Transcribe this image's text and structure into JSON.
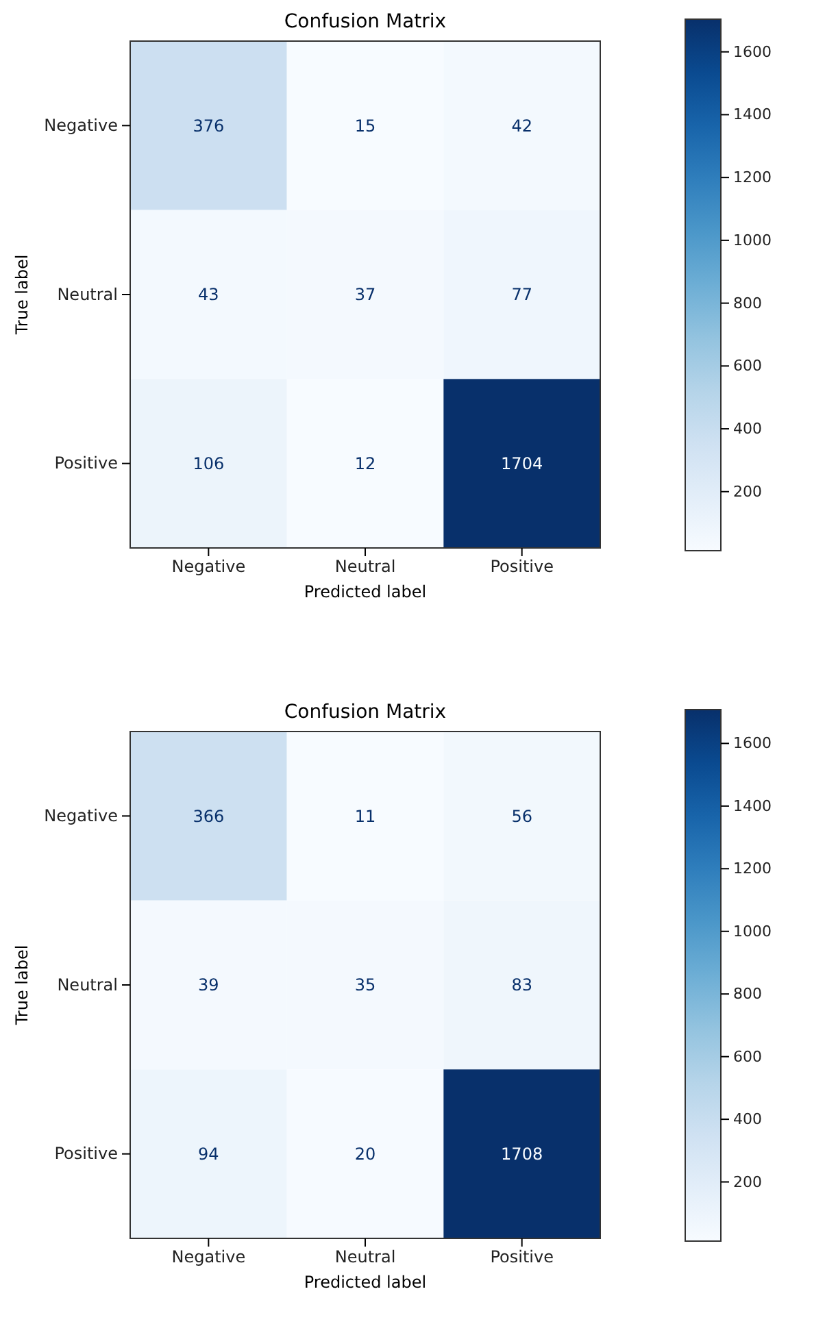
{
  "chart_data": [
    {
      "type": "heatmap",
      "title": "Confusion Matrix",
      "xlabel": "Predicted label",
      "ylabel": "True label",
      "categories": [
        "Negative",
        "Neutral",
        "Positive"
      ],
      "y_categories": [
        "Negative",
        "Neutral",
        "Positive"
      ],
      "cells": [
        [
          376,
          15,
          42
        ],
        [
          43,
          37,
          77
        ],
        [
          106,
          12,
          1704
        ]
      ],
      "data_labels": true,
      "clim": [
        12,
        1704
      ],
      "cticks": [
        200,
        400,
        600,
        800,
        1000,
        1200,
        1400,
        1600
      ]
    },
    {
      "type": "heatmap",
      "title": "Confusion Matrix",
      "xlabel": "Predicted label",
      "ylabel": "True label",
      "categories": [
        "Negative",
        "Neutral",
        "Positive"
      ],
      "y_categories": [
        "Negative",
        "Neutral",
        "Positive"
      ],
      "cells": [
        [
          366,
          11,
          56
        ],
        [
          39,
          35,
          83
        ],
        [
          94,
          20,
          1708
        ]
      ],
      "data_labels": true,
      "clim": [
        11,
        1708
      ],
      "cticks": [
        200,
        400,
        600,
        800,
        1000,
        1200,
        1400,
        1600
      ]
    }
  ]
}
